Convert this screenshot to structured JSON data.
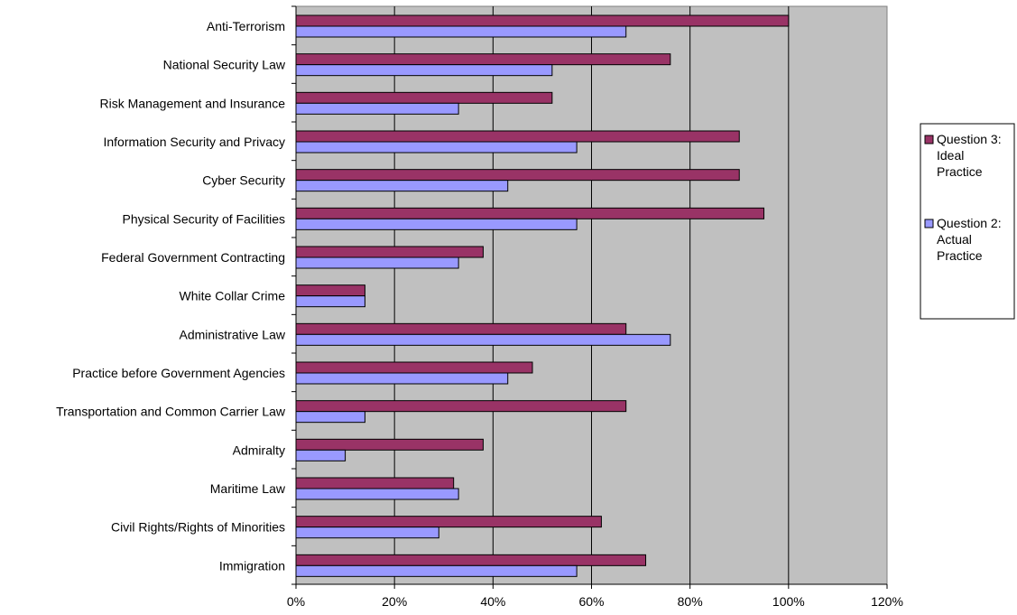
{
  "chart_data": {
    "type": "bar",
    "orientation": "horizontal",
    "categories": [
      "Anti-Terrorism",
      "National Security Law",
      "Risk Management and Insurance",
      "Information Security and Privacy",
      "Cyber Security",
      "Physical Security of Facilities",
      "Federal Government Contracting",
      "White Collar Crime",
      "Administrative Law",
      "Practice before Government Agencies",
      "Transportation and Common Carrier Law",
      "Admiralty",
      "Maritime Law",
      "Civil Rights/Rights of Minorities",
      "Immigration"
    ],
    "series": [
      {
        "name": "Question 3: Ideal Practice",
        "color": "#993366",
        "values": [
          100,
          76,
          52,
          90,
          90,
          95,
          38,
          14,
          67,
          48,
          67,
          38,
          32,
          62,
          71
        ]
      },
      {
        "name": "Question 2: Actual Practice",
        "color": "#9999FF",
        "values": [
          67,
          52,
          33,
          57,
          43,
          57,
          33,
          14,
          76,
          43,
          14,
          10,
          33,
          29,
          57
        ]
      }
    ],
    "xlim": [
      0,
      120
    ],
    "x_ticks": [
      "0%",
      "20%",
      "40%",
      "60%",
      "80%",
      "100%",
      "120%"
    ],
    "grid": "vertical",
    "plot_background": "#C0C0C0",
    "legend_position": "right",
    "legend_lines": [
      [
        "Question 3:",
        "Ideal",
        "Practice"
      ],
      [
        "Question 2:",
        "Actual",
        "Practice"
      ]
    ],
    "title": "",
    "xlabel": "",
    "ylabel": ""
  }
}
